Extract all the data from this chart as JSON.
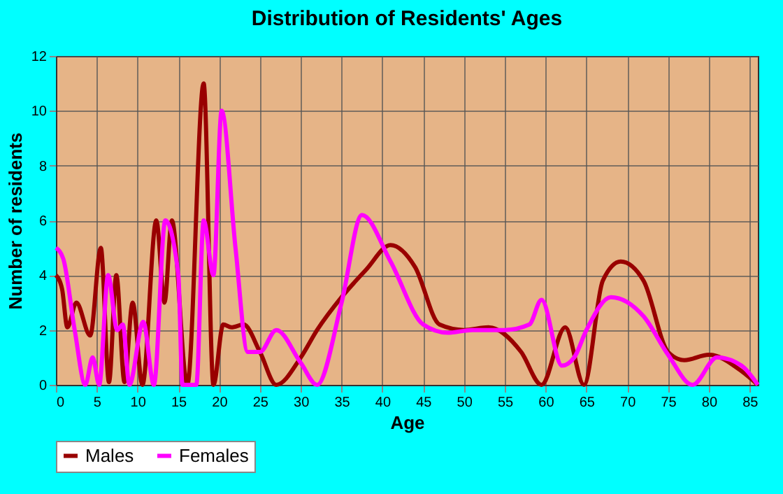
{
  "chart_data": {
    "type": "line",
    "title": "Distribution of Residents' Ages",
    "xlabel": "Age",
    "ylabel": "Number of residents",
    "xlim": [
      0,
      86
    ],
    "xticks": [
      0,
      5,
      10,
      15,
      20,
      25,
      30,
      35,
      40,
      45,
      50,
      55,
      60,
      65,
      70,
      75,
      80,
      85
    ],
    "ylim": [
      0,
      12
    ],
    "yticks": [
      0,
      2,
      4,
      6,
      8,
      10,
      12
    ],
    "grid": true,
    "legend": "bottom",
    "marker": "none",
    "line_style": "solid",
    "series": [
      {
        "name": "Males",
        "color": "#990000",
        "x": [
          0,
          0.75,
          1.4,
          2.5,
          4.2,
          5.5,
          6.5,
          7.4,
          8.4,
          9.4,
          10.6,
          12.3,
          13.3,
          14.2,
          16.1,
          18.1,
          19.3,
          20.5,
          21.5,
          23,
          25,
          27,
          30,
          32,
          35,
          38,
          41,
          44,
          47,
          50,
          53,
          57,
          59.5,
          62.4,
          64.7,
          67,
          69.2,
          72,
          75,
          77,
          80,
          84,
          86
        ],
        "values": [
          4,
          3.5,
          2.1,
          3,
          1.8,
          5,
          0.1,
          4,
          0.1,
          3,
          0,
          6,
          3,
          6,
          0,
          11,
          0,
          2.2,
          2.1,
          2.2,
          1.2,
          0,
          1,
          2,
          3.2,
          4.2,
          5.1,
          4.3,
          2.2,
          2,
          2.1,
          1.2,
          0,
          2.1,
          0,
          3.8,
          4.5,
          3.8,
          1.2,
          0.9,
          1.1,
          0.5,
          0
        ]
      },
      {
        "name": "Females",
        "color": "#ff00ff",
        "x": [
          0,
          0.9,
          2.3,
          3.6,
          4.5,
          5.3,
          6.4,
          7.5,
          8.2,
          9,
          10.7,
          12,
          13.4,
          15,
          15.5,
          17.2,
          18.1,
          19.3,
          20.3,
          22,
          23.5,
          25,
          27,
          30,
          32,
          35,
          37.5,
          41,
          45,
          48,
          51,
          55,
          58,
          59.5,
          62,
          63.5,
          65,
          68,
          72,
          75,
          78,
          81,
          84,
          86
        ],
        "values": [
          5,
          4.6,
          2,
          0,
          1,
          0,
          4,
          2,
          2.2,
          0,
          2.3,
          0,
          6,
          4,
          0,
          0,
          6,
          4,
          10,
          5,
          1.2,
          1.2,
          2,
          0.8,
          0,
          3,
          6.2,
          4.5,
          2.2,
          1.9,
          2,
          2,
          2.2,
          3.1,
          0.7,
          1,
          2,
          3.2,
          2.5,
          1.1,
          0,
          1,
          0.7,
          0
        ]
      }
    ]
  }
}
